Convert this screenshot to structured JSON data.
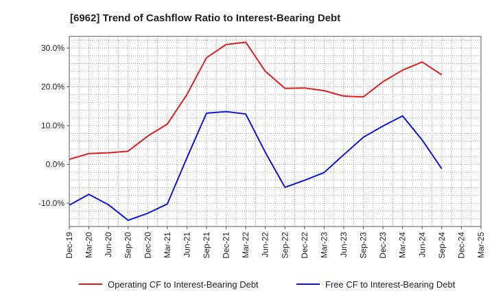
{
  "chart_data": {
    "type": "line",
    "title": "[6962]  Trend of Cashflow Ratio to Interest-Bearing Debt",
    "xlabel": "",
    "ylabel": "",
    "categories": [
      "Dec-19",
      "Mar-20",
      "Jun-20",
      "Sep-20",
      "Dec-20",
      "Mar-21",
      "Jun-21",
      "Sep-21",
      "Dec-21",
      "Mar-22",
      "Jun-22",
      "Sep-22",
      "Dec-22",
      "Mar-23",
      "Jun-23",
      "Sep-23",
      "Dec-23",
      "Mar-24",
      "Jun-24",
      "Sep-24",
      "Dec-24",
      "Mar-25"
    ],
    "series": [
      {
        "name": "Operating CF to Interest-Bearing Debt",
        "color": "#e31a1c",
        "values": [
          1.3,
          2.8,
          3.0,
          3.4,
          7.3,
          10.4,
          18.0,
          27.5,
          30.9,
          31.5,
          24.0,
          19.6,
          19.7,
          19.0,
          17.6,
          17.4,
          21.3,
          24.3,
          26.4,
          23.1,
          null,
          null
        ]
      },
      {
        "name": "Free CF to Interest-Bearing Debt",
        "color": "#0a14e6",
        "values": [
          -10.5,
          -7.7,
          -10.4,
          -14.4,
          -12.6,
          -10.2,
          1.7,
          13.2,
          13.6,
          13.0,
          3.1,
          -5.9,
          -4.1,
          -2.1,
          2.5,
          7.0,
          9.9,
          12.5,
          6.3,
          -1.1,
          null,
          null
        ]
      }
    ],
    "yticks": [
      -10,
      0,
      10,
      20,
      30
    ],
    "ytick_labels": [
      "-10.0%",
      "0.0%",
      "10.0%",
      "20.0%",
      "30.0%"
    ],
    "ylim": [
      -16,
      33
    ],
    "grid": true,
    "legend_position": "bottom"
  }
}
